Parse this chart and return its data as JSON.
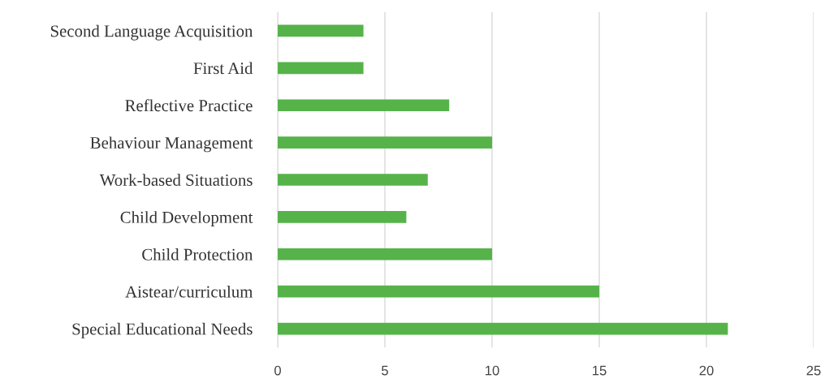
{
  "chart_data": {
    "type": "bar",
    "orientation": "horizontal",
    "categories": [
      "Second Language Acquisition",
      "First Aid",
      "Reflective Practice",
      "Behaviour Management",
      "Work-based Situations",
      "Child Development",
      "Child Protection",
      "Aistear/curriculum",
      "Special Educational Needs"
    ],
    "values": [
      4,
      4,
      8,
      10,
      7,
      6,
      10,
      15,
      21
    ],
    "color": "#56b34a",
    "xlim": [
      0,
      25
    ],
    "xticks": [
      0,
      5,
      10,
      15,
      20,
      25
    ],
    "grid": "x",
    "legend": false
  }
}
